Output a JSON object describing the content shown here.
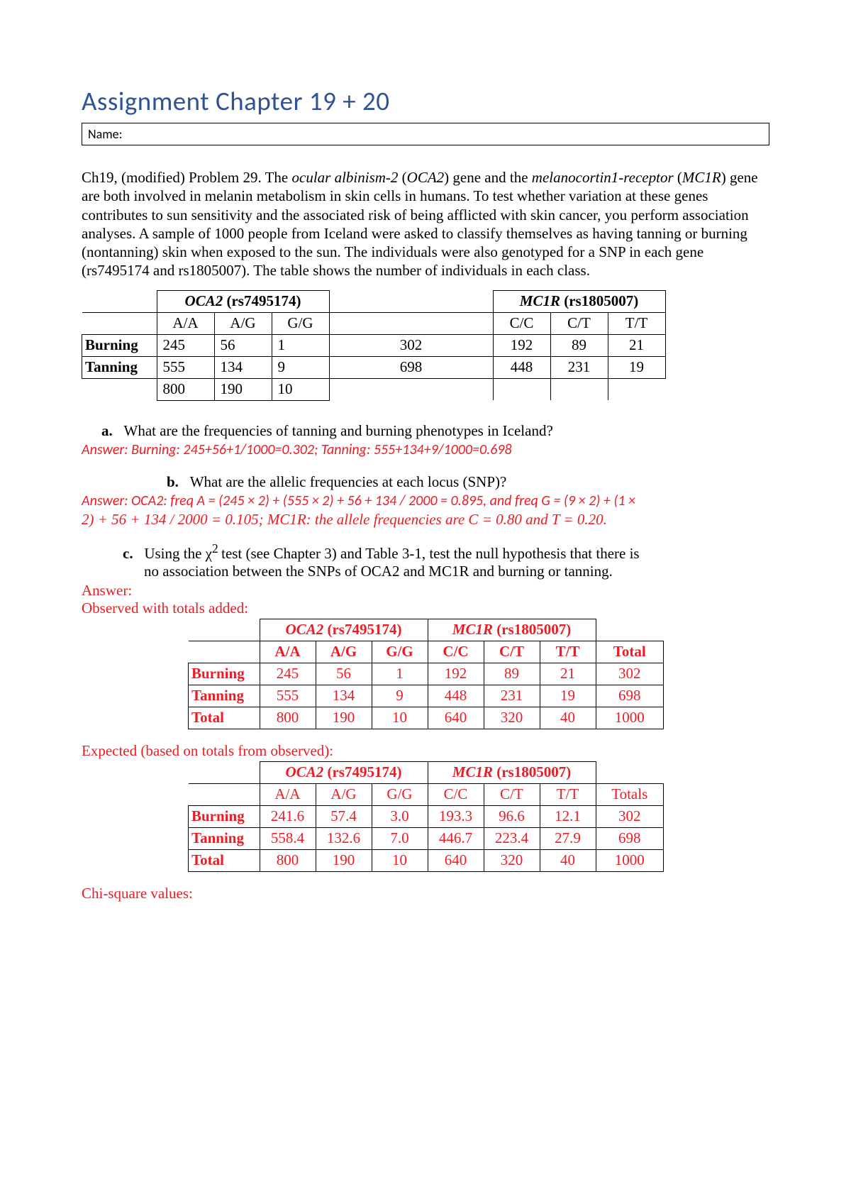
{
  "title": "Assignment Chapter 19 + 20",
  "name_label": "Name:",
  "problem_text": "Ch19, (modified) Problem 29. The <em>ocular albinism-2</em> (<em>OCA2</em>) gene and the <em>melanocortin1-receptor</em> (<em>MC1R</em>) gene are both involved in melanin metabolism in skin cells in humans. To test whether variation at these genes contributes to sun sensitivity and the associated risk of being afflicted with skin cancer, you perform association analyses. A sample of 1000 people from Iceland were asked to classify themselves as having tanning or burning (nontanning) skin when exposed to the sun. The individuals were also genotyped for a SNP in each gene (rs7495174 and rs1805007). The table shows the number of individuals in each class.",
  "oca2_label": "<em><b>OCA2</b></em> <b>(rs7495174)</b>",
  "mc1r_label": "<em><b>MC1R</b></em> <b>(rs1805007)</b>",
  "genotypes_oca2": [
    "A/A",
    "A/G",
    "G/G"
  ],
  "genotypes_mc1r": [
    "C/C",
    "C/T",
    "T/T"
  ],
  "row_labels": [
    "Burning",
    "Tanning"
  ],
  "table1": {
    "burning_oca2": [
      "245",
      "56",
      "1"
    ],
    "tanning_oca2": [
      "555",
      "134",
      "9"
    ],
    "totals_oca2": [
      "800",
      "190",
      "10"
    ],
    "burning_total": "302",
    "tanning_total": "698",
    "burning_mc1r": [
      "192",
      "89",
      "21"
    ],
    "tanning_mc1r": [
      "448",
      "231",
      "19"
    ]
  },
  "q_a": "What are the frequencies of tanning and burning phenotypes in Iceland?",
  "ans_a": "Answer: Burning: 245+56+1/1000=0.302; Tanning: 555+134+9/1000=0.698",
  "q_b": "What are the allelic frequencies at each locus (SNP)?",
  "ans_b_line1": "Answer: OCA2: freq A = (245 × 2) + (555 × 2) + 56 + 134 / 2000 = 0.895, and freq G = (9 × 2) + (1 ×",
  "ans_b_line2": "2) + 56 + 134 / 2000 = 0.105; MC1R: the allele frequencies are C = 0.80 and T = 0.20.",
  "q_c_line1": "Using the χ<sup>2 </sup>test (see Chapter 3) and Table 3-1, test the null hypothesis that there is",
  "q_c_line2": "no association between the SNPs of OCA2 and MC1R and burning or tanning.",
  "answer_label": "Answer:",
  "observed_label": "Observed with totals added:",
  "expected_label": "Expected (based on totals from observed):",
  "chisq_label": "Chi-square values:",
  "total_label": "Total",
  "totals_label": "Totals",
  "observed_table": {
    "burning": [
      "245",
      "56",
      "1",
      "192",
      "89",
      "21",
      "302"
    ],
    "tanning": [
      "555",
      "134",
      "9",
      "448",
      "231",
      "19",
      "698"
    ],
    "total": [
      "800",
      "190",
      "10",
      "640",
      "320",
      "40",
      "1000"
    ]
  },
  "expected_table": {
    "burning": [
      "241.6",
      "57.4",
      "3.0",
      "193.3",
      "96.6",
      "12.1",
      "302"
    ],
    "tanning": [
      "558.4",
      "132.6",
      "7.0",
      "446.7",
      "223.4",
      "27.9",
      "698"
    ],
    "total": [
      "800",
      "190",
      "10",
      "640",
      "320",
      "40",
      "1000"
    ]
  },
  "col_widths": {
    "t1_rowlabel": 105,
    "t1_oca2": 80,
    "t1_mid": 230,
    "t1_mc1r": 80,
    "t2_rowlabel": 100,
    "t2_cell": 78,
    "t2_total": 95,
    "t2_indent": 150
  },
  "colors": {
    "title": "#2f5395",
    "red": "#ed1c24",
    "text": "#000000",
    "bg": "#ffffff"
  },
  "fonts": {
    "title_family": "Calibri",
    "title_size": 37,
    "body_family": "Times New Roman",
    "body_size": 21,
    "answer_family": "Calibri",
    "answer_size": 20
  }
}
